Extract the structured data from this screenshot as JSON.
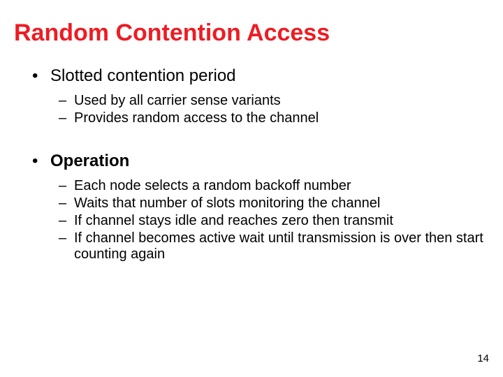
{
  "title": {
    "text": "Random Contention Access",
    "color": "#ee1c23",
    "fontsize": 34
  },
  "body": {
    "color": "#000000",
    "lvl1_fontsize": 24,
    "lvl2_fontsize": 20
  },
  "section1": {
    "heading": "Slotted contention period",
    "heading_bold": false,
    "items": [
      "Used by all carrier sense variants",
      "Provides random access to the channel"
    ]
  },
  "section2": {
    "heading": "Operation",
    "heading_bold": true,
    "margin_top": 36,
    "items": [
      "Each node selects a random backoff number",
      "Waits that number of slots monitoring the channel",
      "If channel stays idle and reaches zero then transmit",
      "If channel becomes active wait until transmission is over then start counting again"
    ]
  },
  "page_number": {
    "text": "14",
    "fontsize": 15,
    "color": "#000000"
  }
}
